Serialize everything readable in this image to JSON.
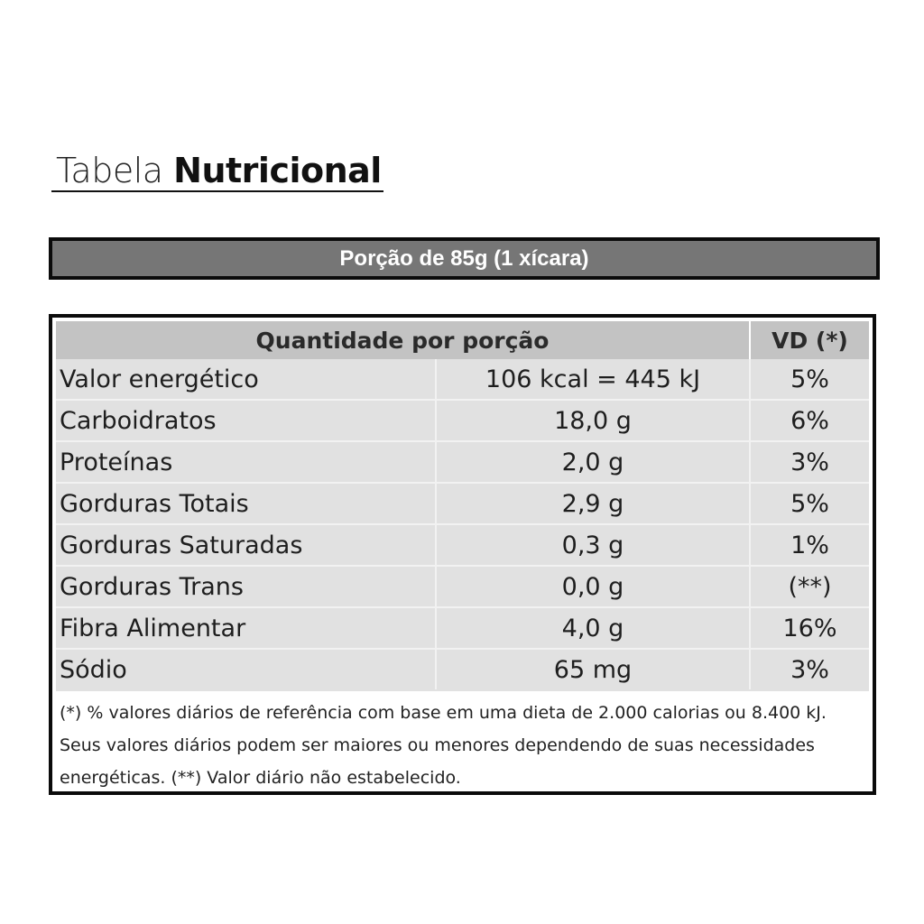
{
  "title": {
    "light": "Tabela",
    "bold": "Nutricional"
  },
  "portion": "Porção de 85g (1 xícara)",
  "table": {
    "header_quantity": "Quantidade por porção",
    "header_vd": "VD (*)",
    "rows": [
      {
        "name": "Valor energético",
        "amount": "106 kcal = 445 kJ",
        "vd": "5%"
      },
      {
        "name": "Carboidratos",
        "amount": "18,0 g",
        "vd": "6%"
      },
      {
        "name": "Proteínas",
        "amount": "2,0 g",
        "vd": "3%"
      },
      {
        "name": "Gorduras Totais",
        "amount": "2,9 g",
        "vd": "5%"
      },
      {
        "name": "Gorduras Saturadas",
        "amount": "0,3 g",
        "vd": "1%"
      },
      {
        "name": "Gorduras Trans",
        "amount": "0,0 g",
        "vd": "(**)"
      },
      {
        "name": "Fibra Alimentar",
        "amount": "4,0 g",
        "vd": "16%"
      },
      {
        "name": "Sódio",
        "amount": "65 mg",
        "vd": "3%"
      }
    ]
  },
  "footnote": "(*) % valores diários de referência com base em uma dieta de 2.000 calorias ou 8.400 kJ. Seus valores diários podem ser maiores ou menores dependendo de suas necessidades energéticas. (**) Valor diário não estabelecido.",
  "colors": {
    "portion_bar": "#767676",
    "header_bg": "#c3c3c3",
    "body_bg": "#e1e1e1",
    "border": "#0b0b0b"
  }
}
